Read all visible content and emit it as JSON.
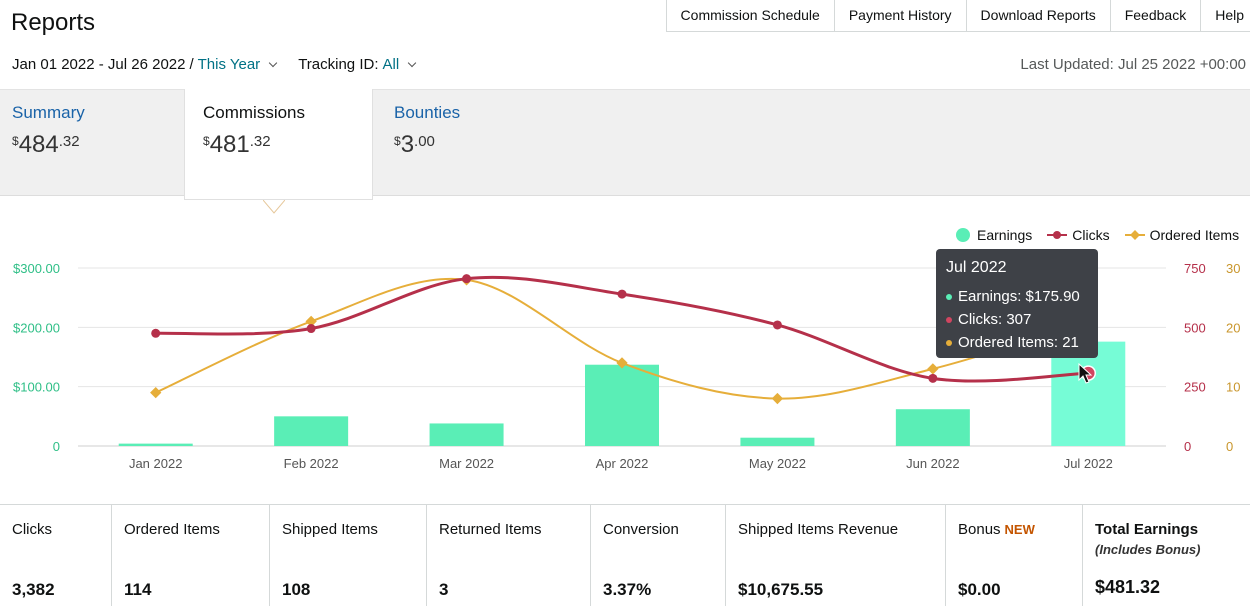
{
  "header": {
    "title": "Reports",
    "nav": [
      "Commission Schedule",
      "Payment History",
      "Download Reports",
      "Feedback",
      "Help"
    ]
  },
  "filters": {
    "date_range": "Jan 01 2022 - Jul 26 2022",
    "separator": "/",
    "period": "This Year",
    "tracking_label": "Tracking ID:",
    "tracking_value": "All",
    "last_updated": "Last Updated: Jul 25 2022 +00:00"
  },
  "tabs": [
    {
      "label": "Summary",
      "currency": "$",
      "whole": "484",
      "cents": ".32"
    },
    {
      "label": "Commissions",
      "currency": "$",
      "whole": "481",
      "cents": ".32"
    },
    {
      "label": "Bounties",
      "currency": "$",
      "whole": "3",
      "cents": ".00"
    }
  ],
  "legend": {
    "earnings": "Earnings",
    "clicks": "Clicks",
    "ordered": "Ordered Items"
  },
  "colors": {
    "earnings": "#5aeeb6",
    "earnings_highlight": "#76fcd6",
    "clicks": "#b5304a",
    "ordered": "#e6ae3a",
    "left_axis": "#2fbf87",
    "link": "#007185"
  },
  "tooltip": {
    "title": "Jul 2022",
    "earnings": "Earnings: $175.90",
    "clicks": "Clicks: 307",
    "ordered": "Ordered Items: 21"
  },
  "chart_data": {
    "type": "bar+line",
    "categories": [
      "Jan 2022",
      "Feb 2022",
      "Mar 2022",
      "Apr 2022",
      "May 2022",
      "Jun 2022",
      "Jul 2022"
    ],
    "series": [
      {
        "name": "Earnings",
        "type": "bar",
        "axis": "left",
        "values": [
          4,
          50,
          38,
          137,
          14,
          62,
          175.9
        ]
      },
      {
        "name": "Clicks",
        "type": "line",
        "axis": "right",
        "values": [
          475,
          495,
          705,
          640,
          510,
          285,
          307
        ]
      },
      {
        "name": "Ordered Items",
        "type": "line",
        "axis": "right2",
        "values": [
          9,
          21,
          28,
          14,
          8,
          13,
          21
        ]
      }
    ],
    "left_axis": {
      "ticks": [
        "0",
        "$100.00",
        "$200.00",
        "$300.00"
      ],
      "range": [
        0,
        300
      ]
    },
    "right_axis": {
      "ticks": [
        "0",
        "250",
        "500",
        "750"
      ],
      "range": [
        0,
        750
      ]
    },
    "right2_axis": {
      "ticks": [
        "0",
        "10",
        "20",
        "30"
      ],
      "range": [
        0,
        30
      ]
    },
    "highlighted": "Jul 2022",
    "grid": true,
    "legend_position": "top-right"
  },
  "stats": [
    {
      "label": "Clicks",
      "value": "3,382"
    },
    {
      "label": "Ordered Items",
      "value": "114"
    },
    {
      "label": "Shipped Items",
      "value": "108"
    },
    {
      "label": "Returned Items",
      "value": "3"
    },
    {
      "label": "Conversion",
      "value": "3.37%"
    },
    {
      "label": "Shipped Items Revenue",
      "value": "$10,675.55"
    },
    {
      "label": "Bonus",
      "badge": "NEW",
      "value": "$0.00"
    },
    {
      "label": "Total Earnings",
      "note": "(Includes Bonus)",
      "value": "$481.32"
    }
  ]
}
